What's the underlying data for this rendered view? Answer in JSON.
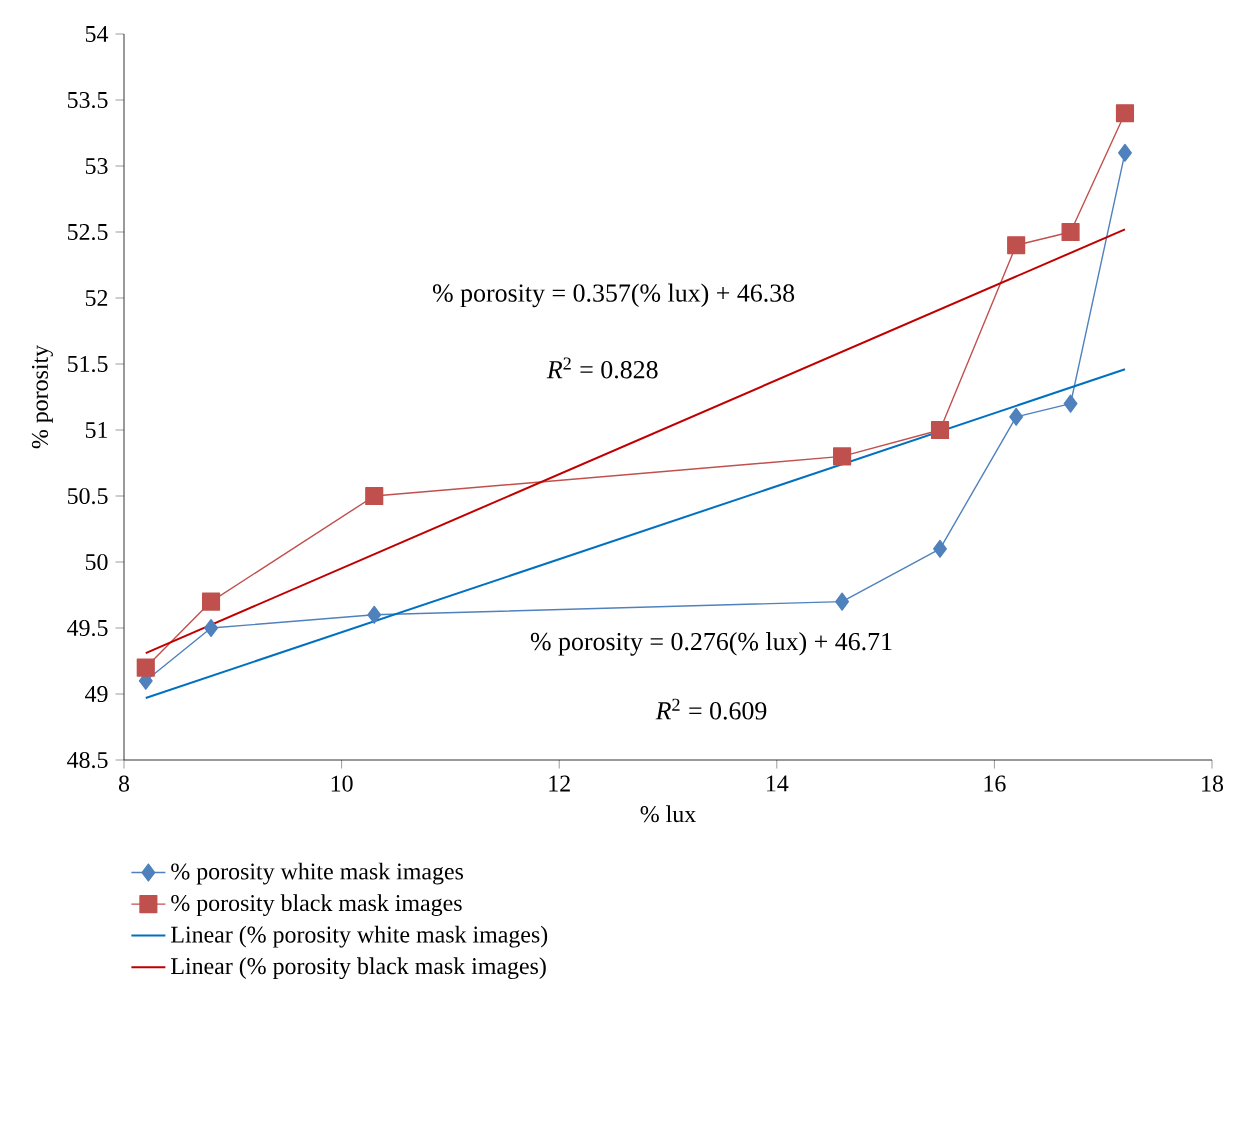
{
  "chart_data": {
    "type": "line",
    "xlabel": "% lux",
    "ylabel": "% porosity",
    "xlim": [
      8,
      18
    ],
    "xticks": [
      8,
      10,
      12,
      14,
      16,
      18
    ],
    "ylim": [
      48.5,
      54
    ],
    "yticks": [
      48.5,
      49,
      49.5,
      50,
      50.5,
      51,
      51.5,
      52,
      52.5,
      53,
      53.5,
      54
    ],
    "grid": false,
    "legend": "bottom",
    "series": [
      {
        "name": "% porosity white mask images",
        "color": "#4f81bd",
        "marker": "diamond",
        "x": [
          8.2,
          8.8,
          10.3,
          14.6,
          15.5,
          16.2,
          16.7,
          17.2
        ],
        "values": [
          49.1,
          49.5,
          49.6,
          49.7,
          50.1,
          51.1,
          51.2,
          53.1
        ]
      },
      {
        "name": "% porosity black mask images",
        "color": "#c0504d",
        "marker": "square",
        "x": [
          8.2,
          8.8,
          10.3,
          14.6,
          15.5,
          16.2,
          16.7,
          17.2
        ],
        "values": [
          49.2,
          49.7,
          50.5,
          50.8,
          51.0,
          52.4,
          52.5,
          53.4
        ]
      },
      {
        "name": "Linear (% porosity white mask images)",
        "color": "#0070c0",
        "marker": "none",
        "x": [
          8.2,
          17.2
        ],
        "values": [
          48.97,
          51.46
        ]
      },
      {
        "name": "Linear (% porosity black mask images)",
        "color": "#c00000",
        "marker": "none",
        "x": [
          8.2,
          17.2
        ],
        "values": [
          49.31,
          52.52
        ]
      }
    ],
    "annotations": [
      "% porosity = 0.357(% lux) + 46.38",
      "*R*$^{2}$ = 0.828",
      "% porosity = 0.276(% lux) + 46.71",
      "*R*$^{2}$ = 0.609"
    ]
  }
}
